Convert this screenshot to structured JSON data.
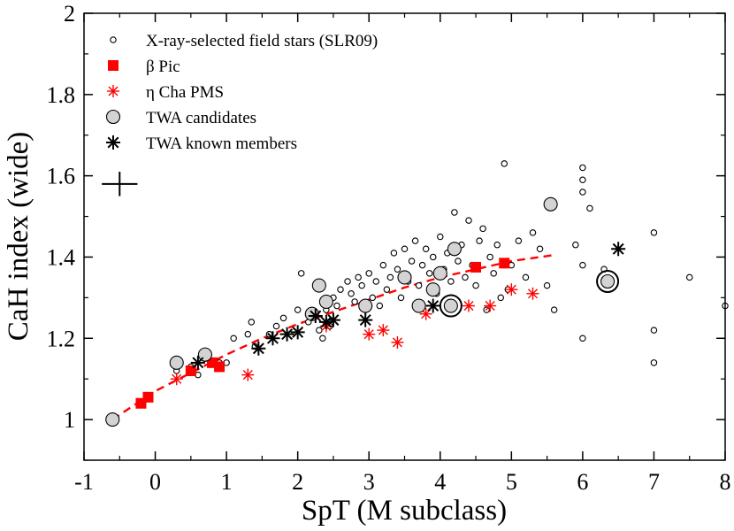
{
  "chart_data": {
    "type": "scatter",
    "xlabel": "SpT (M subclass)",
    "ylabel": "CaH index (wide)",
    "xlim": [
      -1,
      8
    ],
    "ylim": [
      0.9,
      2.0
    ],
    "xticks": [
      "-1",
      "0",
      "1",
      "2",
      "3",
      "4",
      "5",
      "6",
      "7",
      "8"
    ],
    "yticks": [
      "1",
      "1.2",
      "1.4",
      "1.6",
      "1.8",
      "2"
    ],
    "grid": false,
    "legend_position": "top-left",
    "legend": [
      "X-ray-selected field stars (SLR09)",
      "β Pic",
      "η Cha PMS",
      "TWA candidates",
      "TWA known members"
    ],
    "colors": {
      "red": "#ff0000",
      "black": "#000000",
      "gray_fill": "#d3d3d3"
    },
    "fit": {
      "style": "dashed-red",
      "x": [
        -0.6,
        0,
        0.5,
        1,
        1.5,
        2,
        2.5,
        3,
        3.5,
        4,
        4.5,
        5,
        5.6
      ],
      "y": [
        1.0,
        1.07,
        1.115,
        1.16,
        1.2,
        1.235,
        1.265,
        1.295,
        1.325,
        1.35,
        1.37,
        1.39,
        1.405
      ]
    },
    "error_bar": {
      "x": -0.5,
      "y": 1.58,
      "dx": 0.25,
      "dy": 0.03
    },
    "series": [
      {
        "name": "X-ray-selected field stars (SLR09)",
        "marker": "open-circle",
        "points": [
          [
            0.3,
            1.12
          ],
          [
            0.5,
            1.13
          ],
          [
            0.6,
            1.11
          ],
          [
            0.7,
            1.15
          ],
          [
            0.9,
            1.14
          ],
          [
            1.0,
            1.14
          ],
          [
            1.1,
            1.2
          ],
          [
            1.3,
            1.21
          ],
          [
            1.35,
            1.24
          ],
          [
            1.4,
            1.18
          ],
          [
            1.6,
            1.21
          ],
          [
            1.7,
            1.23
          ],
          [
            1.8,
            1.25
          ],
          [
            2.0,
            1.27
          ],
          [
            2.05,
            1.36
          ],
          [
            2.15,
            1.24
          ],
          [
            2.2,
            1.26
          ],
          [
            2.3,
            1.22
          ],
          [
            2.35,
            1.2
          ],
          [
            2.4,
            1.27
          ],
          [
            2.45,
            1.23
          ],
          [
            2.5,
            1.3
          ],
          [
            2.55,
            1.28
          ],
          [
            2.6,
            1.32
          ],
          [
            2.7,
            1.34
          ],
          [
            2.75,
            1.31
          ],
          [
            2.8,
            1.29
          ],
          [
            2.85,
            1.35
          ],
          [
            2.9,
            1.33
          ],
          [
            2.95,
            1.27
          ],
          [
            3.0,
            1.36
          ],
          [
            3.05,
            1.3
          ],
          [
            3.1,
            1.34
          ],
          [
            3.15,
            1.28
          ],
          [
            3.2,
            1.38
          ],
          [
            3.25,
            1.32
          ],
          [
            3.3,
            1.35
          ],
          [
            3.35,
            1.41
          ],
          [
            3.4,
            1.37
          ],
          [
            3.45,
            1.3
          ],
          [
            3.5,
            1.42
          ],
          [
            3.55,
            1.34
          ],
          [
            3.6,
            1.39
          ],
          [
            3.65,
            1.44
          ],
          [
            3.7,
            1.33
          ],
          [
            3.75,
            1.38
          ],
          [
            3.8,
            1.42
          ],
          [
            3.85,
            1.36
          ],
          [
            3.9,
            1.4
          ],
          [
            3.95,
            1.31
          ],
          [
            4.0,
            1.45
          ],
          [
            4.05,
            1.37
          ],
          [
            4.1,
            1.41
          ],
          [
            4.15,
            1.34
          ],
          [
            4.2,
            1.51
          ],
          [
            4.25,
            1.39
          ],
          [
            4.3,
            1.43
          ],
          [
            4.35,
            1.35
          ],
          [
            4.4,
            1.49
          ],
          [
            4.45,
            1.38
          ],
          [
            4.5,
            1.33
          ],
          [
            4.55,
            1.44
          ],
          [
            4.6,
            1.47
          ],
          [
            4.65,
            1.27
          ],
          [
            4.7,
            1.4
          ],
          [
            4.75,
            1.36
          ],
          [
            4.8,
            1.43
          ],
          [
            4.85,
            1.3
          ],
          [
            4.9,
            1.63
          ],
          [
            4.95,
            1.32
          ],
          [
            5.0,
            1.38
          ],
          [
            5.1,
            1.44
          ],
          [
            5.2,
            1.35
          ],
          [
            5.3,
            1.46
          ],
          [
            5.4,
            1.42
          ],
          [
            5.5,
            1.33
          ],
          [
            5.6,
            1.27
          ],
          [
            5.9,
            1.43
          ],
          [
            6.0,
            1.62
          ],
          [
            6.0,
            1.59
          ],
          [
            6.0,
            1.56
          ],
          [
            6.0,
            1.38
          ],
          [
            6.0,
            1.2
          ],
          [
            6.1,
            1.52
          ],
          [
            6.3,
            1.37
          ],
          [
            7.0,
            1.46
          ],
          [
            7.0,
            1.22
          ],
          [
            7.0,
            1.14
          ],
          [
            7.5,
            1.35
          ],
          [
            8.0,
            1.28
          ]
        ]
      },
      {
        "name": "β Pic",
        "marker": "filled-square",
        "points": [
          [
            -0.2,
            1.04
          ],
          [
            -0.1,
            1.055
          ],
          [
            0.5,
            1.12
          ],
          [
            0.8,
            1.14
          ],
          [
            0.9,
            1.13
          ],
          [
            4.5,
            1.375
          ],
          [
            4.9,
            1.385
          ]
        ]
      },
      {
        "name": "η Cha PMS",
        "marker": "red-asterisk",
        "points": [
          [
            0.3,
            1.1
          ],
          [
            1.3,
            1.11
          ],
          [
            2.4,
            1.23
          ],
          [
            3.0,
            1.21
          ],
          [
            3.2,
            1.22
          ],
          [
            3.4,
            1.19
          ],
          [
            3.8,
            1.26
          ],
          [
            4.4,
            1.28
          ],
          [
            4.7,
            1.28
          ],
          [
            5.0,
            1.32
          ],
          [
            5.3,
            1.31
          ]
        ]
      },
      {
        "name": "TWA candidates",
        "marker": "gray-circle",
        "points": [
          [
            -0.6,
            1.0
          ],
          [
            0.3,
            1.14
          ],
          [
            0.7,
            1.16
          ],
          [
            2.2,
            1.26
          ],
          [
            2.3,
            1.33
          ],
          [
            2.4,
            1.29
          ],
          [
            2.95,
            1.28
          ],
          [
            3.5,
            1.35
          ],
          [
            3.7,
            1.28
          ],
          [
            3.9,
            1.32
          ],
          [
            4.0,
            1.36
          ],
          [
            4.15,
            1.28
          ],
          [
            4.2,
            1.42
          ],
          [
            5.55,
            1.53
          ],
          [
            6.35,
            1.34
          ]
        ]
      },
      {
        "name": "TWA known members",
        "marker": "black-asterisk",
        "points": [
          [
            0.6,
            1.14
          ],
          [
            1.45,
            1.175
          ],
          [
            1.65,
            1.2
          ],
          [
            1.85,
            1.21
          ],
          [
            2.0,
            1.215
          ],
          [
            2.25,
            1.255
          ],
          [
            2.4,
            1.24
          ],
          [
            2.5,
            1.245
          ],
          [
            2.95,
            1.245
          ],
          [
            3.9,
            1.28
          ],
          [
            6.5,
            1.42
          ]
        ]
      }
    ],
    "highlight_rings": [
      [
        4.15,
        1.28
      ],
      [
        6.35,
        1.34
      ]
    ]
  }
}
